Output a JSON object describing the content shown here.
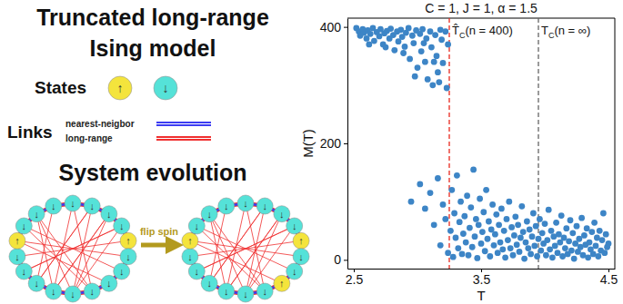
{
  "diagram": {
    "title_lines": [
      "Truncated long-range",
      "Ising model"
    ],
    "states_label": "States",
    "states": [
      {
        "symbol": "↑",
        "color": "#f4e43c"
      },
      {
        "symbol": "↓",
        "color": "#55e2d8"
      }
    ],
    "links_label": "Links",
    "links": [
      {
        "label": "nearest-neigbor",
        "color": "#3b3bf2"
      },
      {
        "label": "long-range",
        "color": "#f03030"
      }
    ],
    "evolution_label": "System evolution",
    "arrow_label": "flip spin",
    "rings": [
      [
        "↓",
        "↓",
        "↓",
        "↓",
        "↑",
        "↓",
        "↓",
        "↓",
        "↓",
        "↓",
        "↓",
        "↓",
        "↓",
        "↓",
        "↑",
        "↓",
        "↓",
        "↓"
      ],
      [
        "↓",
        "↓",
        "↓",
        "↓",
        "↑",
        "↓",
        "↓",
        "↑",
        "↓",
        "↓",
        "↓",
        "↓",
        "↓",
        "↓",
        "↑",
        "↓",
        "↓",
        "↓"
      ]
    ]
  },
  "chart_data": {
    "type": "scatter",
    "title": "C = 1, J = 1, α = 1.5",
    "x_label": "T",
    "y_label": "M(T)",
    "color": "#3d85c6",
    "marker": "circle",
    "xlim": [
      2.45,
      4.55
    ],
    "ylim": [
      -15,
      415
    ],
    "xticks": [
      2.5,
      3.5,
      4.5
    ],
    "yticks": [
      0,
      200,
      400
    ],
    "vlines": [
      {
        "x": 3.25,
        "color": "#e8281e",
        "line_style": "dashed",
        "label": {
          "symbol": "T̂",
          "sub": "C",
          "rest": "(n = 400)"
        }
      },
      {
        "x": 3.95,
        "color": "#666666",
        "line_style": "dashed",
        "label": {
          "symbol": "T",
          "sub": "C",
          "rest": "(n = ∞)"
        }
      }
    ],
    "x": [
      2.52,
      2.54,
      2.55,
      2.57,
      2.58,
      2.6,
      2.61,
      2.63,
      2.65,
      2.66,
      2.68,
      2.7,
      2.71,
      2.73,
      2.74,
      2.76,
      2.78,
      2.79,
      2.81,
      2.82,
      2.84,
      2.85,
      2.87,
      2.88,
      2.9,
      2.91,
      2.93,
      2.94,
      2.96,
      2.97,
      2.99,
      3.0,
      3.02,
      3.03,
      3.04,
      3.06,
      3.07,
      3.08,
      3.1,
      3.11,
      3.12,
      3.14,
      3.15,
      3.16,
      3.18,
      3.19,
      3.2,
      3.22,
      3.23,
      3.24,
      2.62,
      2.75,
      2.89,
      3.05,
      3.13,
      2.98,
      3.17,
      2.95,
      3.02,
      3.06,
      3.1,
      3.13,
      3.16,
      3.18,
      3.2,
      3.22,
      3.24,
      3.26,
      3.27,
      3.28,
      3.29,
      3.3,
      3.31,
      3.32,
      3.33,
      3.34,
      3.35,
      3.36,
      3.37,
      3.38,
      3.39,
      3.4,
      3.41,
      3.42,
      3.43,
      3.44,
      3.45,
      3.46,
      3.47,
      3.48,
      3.49,
      3.5,
      3.51,
      3.52,
      3.53,
      3.54,
      3.55,
      3.56,
      3.57,
      3.58,
      3.59,
      3.6,
      3.61,
      3.62,
      3.63,
      3.64,
      3.65,
      3.66,
      3.67,
      3.68,
      3.69,
      3.7,
      3.71,
      3.72,
      3.73,
      3.74,
      3.75,
      3.76,
      3.77,
      3.78,
      3.79,
      3.8,
      3.81,
      3.82,
      3.83,
      3.84,
      3.85,
      3.86,
      3.87,
      3.88,
      3.89,
      3.9,
      3.91,
      3.92,
      3.93,
      3.94,
      3.95,
      3.96,
      3.97,
      3.98,
      3.99,
      4.0,
      4.01,
      4.02,
      4.03,
      4.04,
      4.05,
      4.06,
      4.07,
      4.08,
      4.09,
      4.1,
      4.11,
      4.12,
      4.13,
      4.14,
      4.15,
      4.16,
      4.17,
      4.18,
      4.19,
      4.2,
      4.21,
      4.22,
      4.23,
      4.24,
      4.25,
      4.26,
      4.27,
      4.28,
      4.29,
      4.3,
      4.31,
      4.32,
      4.33,
      4.34,
      4.35,
      4.36,
      4.37,
      4.38,
      4.39,
      4.4,
      4.41,
      4.42,
      4.43,
      4.44,
      4.45,
      4.46,
      4.47,
      4.48,
      4.49,
      4.5
    ],
    "y": [
      398,
      392,
      385,
      396,
      390,
      380,
      394,
      388,
      398,
      376,
      391,
      384,
      396,
      370,
      389,
      393,
      380,
      397,
      386,
      360,
      392,
      375,
      395,
      383,
      366,
      390,
      398,
      345,
      385,
      372,
      394,
      330,
      388,
      358,
      396,
      340,
      380,
      310,
      392,
      365,
      300,
      386,
      350,
      322,
      395,
      378,
      338,
      392,
      295,
      370,
      370,
      365,
      355,
      372,
      340,
      315,
      305,
      100,
      130,
      88,
      115,
      60,
      140,
      25,
      95,
      70,
      12,
      50,
      120,
      5,
      80,
      38,
      145,
      20,
      65,
      100,
      10,
      45,
      75,
      30,
      110,
      8,
      55,
      90,
      22,
      155,
      40,
      70,
      3,
      60,
      105,
      28,
      48,
      82,
      15,
      120,
      36,
      66,
      6,
      52,
      95,
      25,
      44,
      78,
      12,
      60,
      30,
      88,
      18,
      50,
      4,
      70,
      34,
      100,
      20,
      56,
      8,
      42,
      74,
      26,
      60,
      14,
      38,
      92,
      48,
      2,
      30,
      66,
      20,
      52,
      10,
      40,
      80,
      24,
      58,
      6,
      36,
      70,
      16,
      46,
      28,
      62,
      8,
      34,
      86,
      18,
      50,
      4,
      40,
      24,
      64,
      12,
      44,
      30,
      76,
      6,
      38,
      20,
      54,
      10,
      32,
      68,
      16,
      46,
      2,
      28,
      58,
      14,
      36,
      22,
      72,
      8,
      42,
      26,
      54,
      4,
      30,
      18,
      48,
      10,
      64,
      24,
      38,
      6,
      50,
      16,
      34,
      80,
      12,
      44,
      22,
      28
    ]
  }
}
